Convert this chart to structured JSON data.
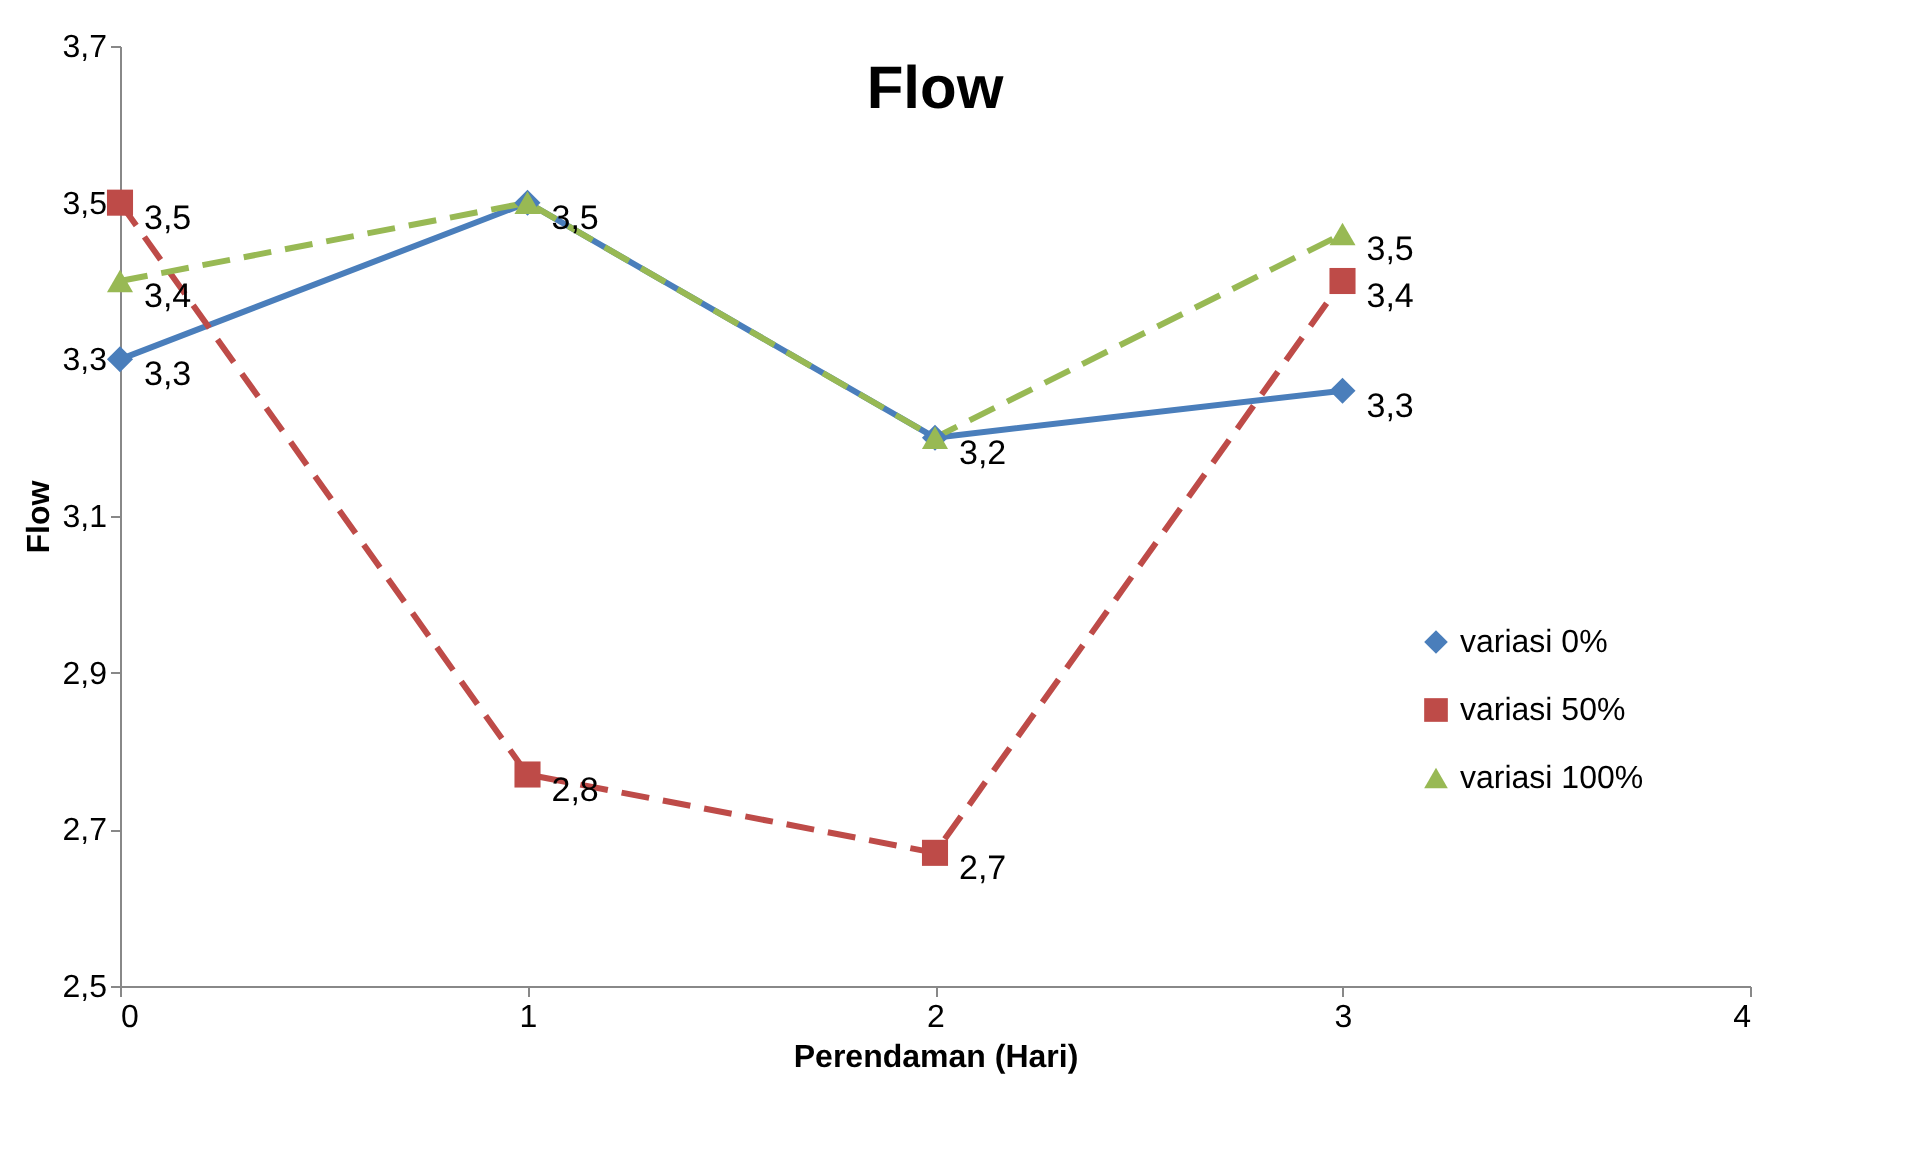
{
  "chart_data": {
    "type": "line",
    "title": "Flow",
    "xlabel": "Perendaman (Hari)",
    "ylabel": "Flow",
    "x": [
      0,
      1,
      2,
      3
    ],
    "series": [
      {
        "name": "variasi 0%",
        "color": "#4a7ebb",
        "marker": "diamond",
        "line_style": "solid",
        "values": [
          3.3,
          3.5,
          3.2,
          3.26
        ],
        "value_labels": [
          "3,3",
          "3,5",
          "3,2",
          "3,3"
        ]
      },
      {
        "name": "variasi 50%",
        "color": "#be4b48",
        "marker": "square",
        "line_style": "dashed",
        "values": [
          3.5,
          2.77,
          2.67,
          3.4
        ],
        "value_labels": [
          "3,5",
          "2,8",
          "2,7",
          "3,4"
        ]
      },
      {
        "name": "variasi 100%",
        "color": "#98b954",
        "marker": "triangle",
        "line_style": "dashed",
        "values": [
          3.4,
          3.5,
          3.2,
          3.46
        ],
        "value_labels": [
          "3,4",
          null,
          null,
          "3,5"
        ]
      }
    ],
    "xlim": [
      0,
      4
    ],
    "xticks": [
      0,
      1,
      2,
      3,
      4
    ],
    "ylim": [
      2.5,
      3.7
    ],
    "yticks": [
      {
        "value": 2.5,
        "label": "2,5"
      },
      {
        "value": 2.7,
        "label": "2,7"
      },
      {
        "value": 2.9,
        "label": "2,9"
      },
      {
        "value": 3.1,
        "label": "3,1"
      },
      {
        "value": 3.3,
        "label": "3,3"
      },
      {
        "value": 3.5,
        "label": "3,5"
      },
      {
        "value": 3.7,
        "label": "3,7"
      }
    ],
    "grid": false,
    "legend": "right"
  }
}
